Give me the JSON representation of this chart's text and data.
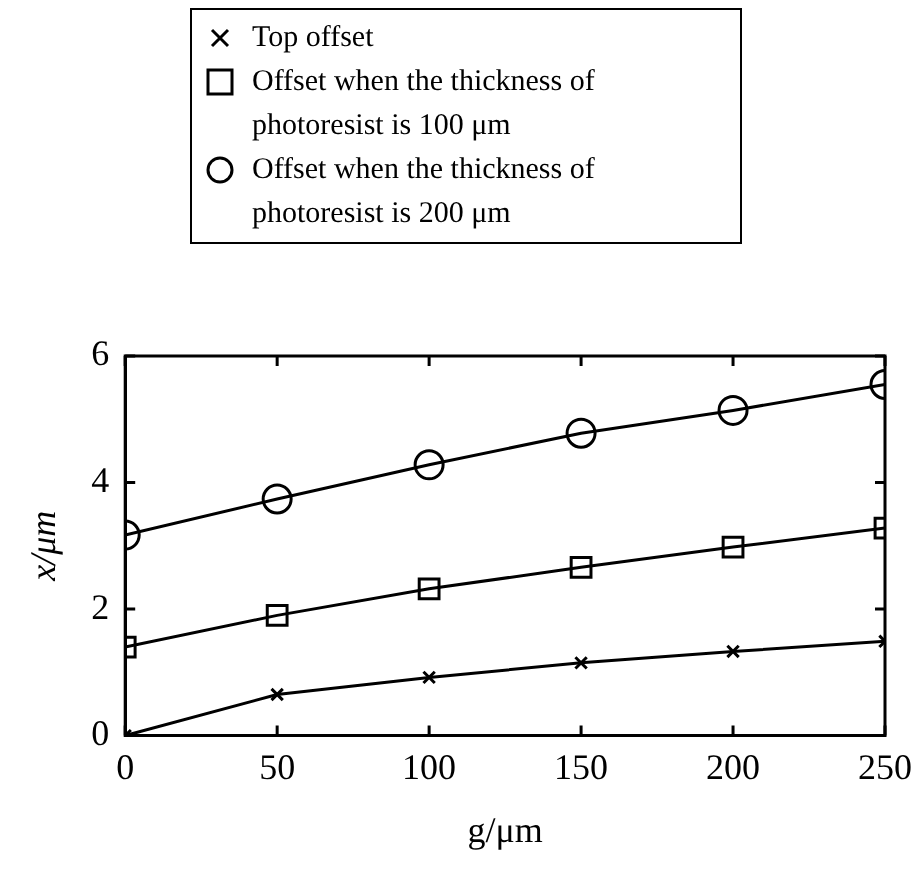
{
  "chart_data": {
    "type": "line",
    "xlabel": "g/μm",
    "ylabel": "x/μm",
    "x": [
      0,
      50,
      100,
      150,
      200,
      250
    ],
    "xlim": [
      0,
      250
    ],
    "xticks": [
      0,
      50,
      100,
      150,
      200,
      250
    ],
    "ylim": [
      0,
      6
    ],
    "yticks": [
      0,
      2,
      4,
      6
    ],
    "grid": false,
    "legend": "top",
    "line_style": "solid",
    "series": [
      {
        "name": "Top offset",
        "color": "#000000",
        "marker": "cross",
        "values": [
          0,
          0.65,
          0.92,
          1.15,
          1.33,
          1.49
        ]
      },
      {
        "name": "Offset when the thickness of photoresist is 100 μm",
        "color": "#000000",
        "marker": "square",
        "values": [
          1.4,
          1.9,
          2.32,
          2.66,
          2.98,
          3.28
        ]
      },
      {
        "name": "Offset when the thickness of photoresist is 200 μm",
        "color": "#000000",
        "marker": "circle",
        "values": [
          3.17,
          3.74,
          4.28,
          4.78,
          5.14,
          5.55
        ]
      }
    ]
  }
}
